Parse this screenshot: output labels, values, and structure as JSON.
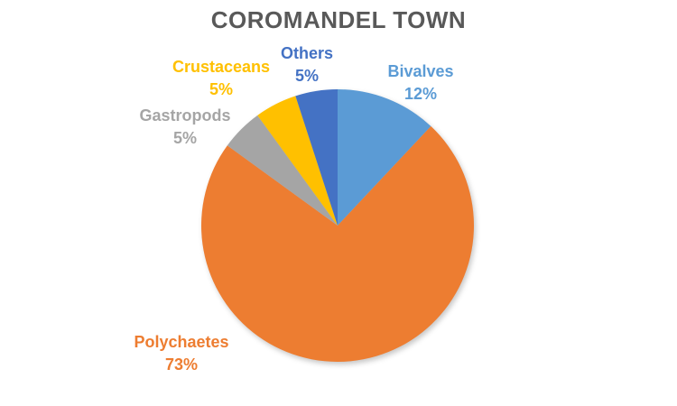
{
  "title": "COROMANDEL TOWN",
  "colors": {
    "title_text": "#595959",
    "background": "#FFFFFF"
  },
  "chart_data": {
    "type": "pie",
    "title": "COROMANDEL TOWN",
    "categories": [
      "Bivalves",
      "Polychaetes",
      "Gastropods",
      "Crustaceans",
      "Others"
    ],
    "values": [
      12,
      73,
      5,
      5,
      5
    ],
    "unit": "percent",
    "data_labels": [
      "12%",
      "73%",
      "5%",
      "5%",
      "5%"
    ],
    "colors": [
      "#5B9BD5",
      "#ED7D31",
      "#A5A5A5",
      "#FFC000",
      "#4472C4"
    ],
    "start_angle_deg": 0,
    "direction": "clockwise",
    "legend": "none",
    "label_style": "category-name-and-percentage-outside-colored"
  }
}
